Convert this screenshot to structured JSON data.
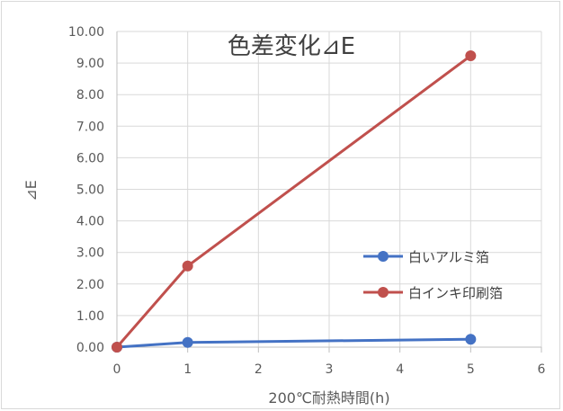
{
  "chart_data": {
    "type": "line",
    "title": "色差変化⊿E",
    "xlabel": "200℃耐熱時間(h)",
    "ylabel": "⊿E",
    "xlim": [
      0,
      6
    ],
    "ylim": [
      0,
      10
    ],
    "x_ticks": [
      "0",
      "1",
      "2",
      "3",
      "4",
      "5",
      "6"
    ],
    "y_ticks": [
      "0.00",
      "1.00",
      "2.00",
      "3.00",
      "4.00",
      "5.00",
      "6.00",
      "7.00",
      "8.00",
      "9.00",
      "10.00"
    ],
    "grid": true,
    "legend_position": "right",
    "series": [
      {
        "name": "白いアルミ箔",
        "color": "#4472c4",
        "points": [
          {
            "x": 0,
            "y": 0.0
          },
          {
            "x": 1,
            "y": 0.15
          },
          {
            "x": 5,
            "y": 0.25
          }
        ]
      },
      {
        "name": "白インキ印刷箔",
        "color": "#c0504d",
        "points": [
          {
            "x": 0,
            "y": 0.0
          },
          {
            "x": 1,
            "y": 2.57
          },
          {
            "x": 5,
            "y": 9.23
          }
        ]
      }
    ]
  }
}
